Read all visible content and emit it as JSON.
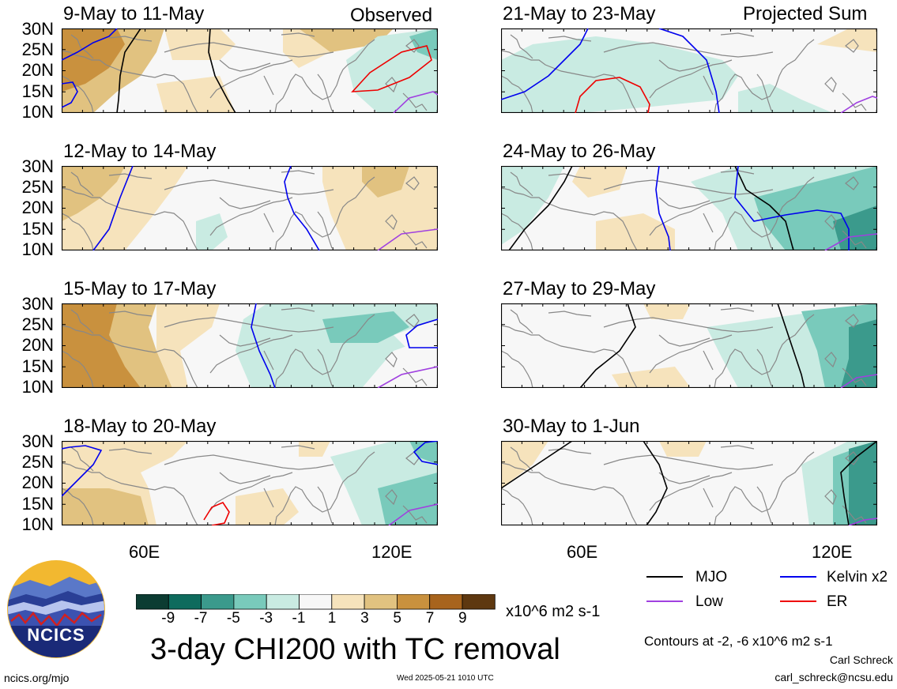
{
  "header": {
    "observed_label": "Observed",
    "projected_label": "Projected Sum"
  },
  "chart_data": {
    "type": "heatmap",
    "title": "3-day CHI200 with TC removal",
    "units": "x10^6 m2 s-1",
    "lat_ticks": [
      "30N",
      "25N",
      "20N",
      "15N",
      "10N"
    ],
    "lon_ticks": [
      "60E",
      "120E"
    ],
    "lat_range": [
      10,
      30
    ],
    "lon_range": [
      40,
      130
    ],
    "colorbar": {
      "levels": [
        "-9",
        "-7",
        "-5",
        "-3",
        "-1",
        "1",
        "3",
        "5",
        "7",
        "9"
      ],
      "colors": [
        "#0c3c32",
        "#0e6b5d",
        "#3b9a8c",
        "#79cabb",
        "#c9ebe2",
        "#f7f7f7",
        "#f6e3bc",
        "#e1c280",
        "#c9913e",
        "#a8641d",
        "#5e3810"
      ]
    },
    "panels": [
      {
        "id": "p1",
        "title": "9-May to 11-May",
        "tag": "Observed"
      },
      {
        "id": "p2",
        "title": "21-May to 23-May",
        "tag": "Projected Sum"
      },
      {
        "id": "p3",
        "title": "12-May to 14-May"
      },
      {
        "id": "p4",
        "title": "24-May to 26-May"
      },
      {
        "id": "p5",
        "title": "15-May to 17-May"
      },
      {
        "id": "p6",
        "title": "27-May to 29-May"
      },
      {
        "id": "p7",
        "title": "18-May to 20-May"
      },
      {
        "id": "p8",
        "title": "30-May to 1-Jun"
      }
    ],
    "contour_legend": [
      {
        "label": "MJO",
        "color": "#000000"
      },
      {
        "label": "Kelvin x2",
        "color": "#0000ee"
      },
      {
        "label": "Low",
        "color": "#a040e0"
      },
      {
        "label": "ER",
        "color": "#ee0000"
      }
    ],
    "contour_note": "Contours at -2, -6 x10^6 m2 s-1"
  },
  "footer": {
    "logo_text": "NCICS",
    "url": "ncics.org/mjo",
    "timestamp": "Wed 2025-05-21 1010 UTC",
    "author": "Carl Schreck",
    "email": "carl_schreck@ncsu.edu"
  }
}
